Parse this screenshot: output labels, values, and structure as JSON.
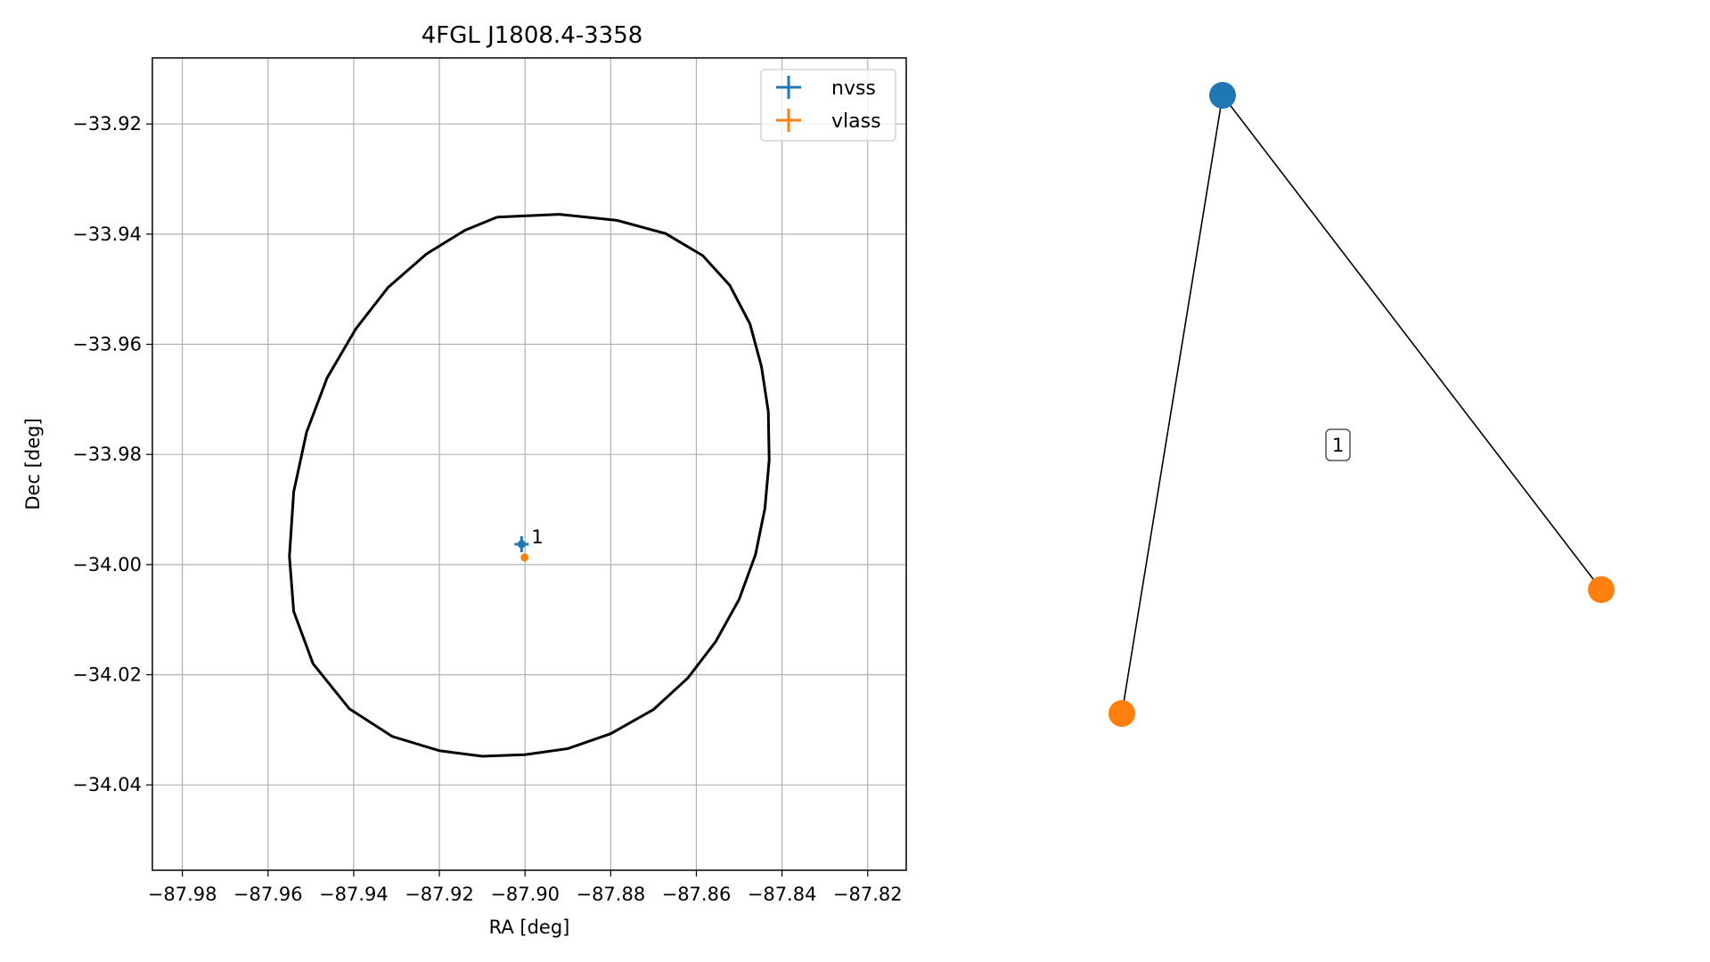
{
  "chart_data": [
    {
      "type": "scatter",
      "title": "4FGL J1808.4-3358",
      "xlabel": "RA [deg]",
      "ylabel": "Dec [deg]",
      "xlim": [
        -87.987,
        -87.811
      ],
      "ylim": [
        -34.0555,
        -33.908
      ],
      "xticks": [
        -87.98,
        -87.96,
        -87.94,
        -87.92,
        -87.9,
        -87.88,
        -87.86,
        -87.84,
        -87.82
      ],
      "xtick_labels": [
        "−87.98",
        "−87.96",
        "−87.94",
        "−87.92",
        "−87.90",
        "−87.88",
        "−87.86",
        "−87.84",
        "−87.82"
      ],
      "yticks": [
        -33.92,
        -33.94,
        -33.96,
        -33.98,
        -34.0,
        -34.02,
        -34.04
      ],
      "ytick_labels": [
        "−33.92",
        "−33.94",
        "−33.96",
        "−33.98",
        "−34.00",
        "−34.02",
        "−34.04"
      ],
      "grid": true,
      "legend_position": "top-right",
      "series": [
        {
          "name": "nvss",
          "color": "#1f77b4",
          "points": [
            {
              "x": -87.9008,
              "y": -33.9963,
              "label": "1"
            }
          ]
        },
        {
          "name": "vlass",
          "color": "#ff7f0e",
          "points": [
            {
              "x": -87.9001,
              "y": -33.9987
            }
          ]
        }
      ],
      "ellipse": {
        "color": "#000000",
        "points": [
          [
            -87.9065,
            -33.9369
          ],
          [
            -87.892,
            -33.9364
          ],
          [
            -87.8785,
            -33.9375
          ],
          [
            -87.8672,
            -33.9399
          ],
          [
            -87.8585,
            -33.9439
          ],
          [
            -87.8522,
            -33.9493
          ],
          [
            -87.8475,
            -33.9563
          ],
          [
            -87.8448,
            -33.964
          ],
          [
            -87.8432,
            -33.9722
          ],
          [
            -87.843,
            -33.981
          ],
          [
            -87.844,
            -33.9898
          ],
          [
            -87.8462,
            -33.9982
          ],
          [
            -87.85,
            -34.0063
          ],
          [
            -87.8555,
            -34.014
          ],
          [
            -87.862,
            -34.0206
          ],
          [
            -87.87,
            -34.0263
          ],
          [
            -87.88,
            -34.0307
          ],
          [
            -87.89,
            -34.0334
          ],
          [
            -87.9,
            -34.0345
          ],
          [
            -87.91,
            -34.0348
          ],
          [
            -87.92,
            -34.0338
          ],
          [
            -87.931,
            -34.0312
          ],
          [
            -87.941,
            -34.0262
          ],
          [
            -87.9495,
            -34.018
          ],
          [
            -87.954,
            -34.0085
          ],
          [
            -87.955,
            -33.9985
          ],
          [
            -87.954,
            -33.9868
          ],
          [
            -87.951,
            -33.976
          ],
          [
            -87.9462,
            -33.9661
          ],
          [
            -87.9395,
            -33.9572
          ],
          [
            -87.932,
            -33.9497
          ],
          [
            -87.923,
            -33.9436
          ],
          [
            -87.914,
            -33.9393
          ],
          [
            -87.9065,
            -33.9369
          ]
        ]
      }
    },
    {
      "type": "graph",
      "nodes": [
        {
          "id": "nvss",
          "color": "#1f77b4"
        },
        {
          "id": "vlass-a",
          "color": "#ff7f0e"
        },
        {
          "id": "vlass-b",
          "color": "#ff7f0e"
        }
      ],
      "edges": [
        [
          "nvss",
          "vlass-a"
        ],
        [
          "nvss",
          "vlass-b"
        ]
      ],
      "edge_labels": [
        "1"
      ]
    }
  ]
}
